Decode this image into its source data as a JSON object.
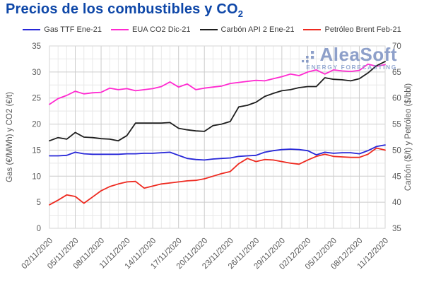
{
  "title": {
    "text": "Precios de los combustibles y CO",
    "subscript": "2"
  },
  "watermark": {
    "name": "AleaSoft",
    "tagline": "ENERGY FORECASTING"
  },
  "colors": {
    "title": "#0e47a8",
    "axis_text": "#595959",
    "grid_minor": "#e8e8e8",
    "grid_major": "#cccccc",
    "frame": "#d6d6d6",
    "watermark_text": "#7289bd",
    "watermark_tagline": "#7f98ca",
    "legend_text": "#3c3c3c"
  },
  "chart_data": {
    "type": "line",
    "title": "Precios de los combustibles y CO2",
    "grid": true,
    "legend_position": "top",
    "x_tick_labels": [
      "02/11/2020",
      "05/11/2020",
      "08/11/2020",
      "11/11/2020",
      "14/11/2020",
      "17/11/2020",
      "20/11/2020",
      "23/11/2020",
      "26/11/2020",
      "29/11/2020",
      "02/12/2020",
      "05/12/2020",
      "08/12/2020",
      "11/12/2020"
    ],
    "x_label_every_days": 3,
    "days_total": 40,
    "axes": {
      "left": {
        "label": "Gas (€/MWh) y CO2 (€/t)",
        "min": 0,
        "max": 35,
        "tick_step": 5,
        "minor_step": 2.5
      },
      "right": {
        "label": "Carbón ($/t) y Petróleo ($/bbl)",
        "min": 35,
        "max": 70,
        "tick_step": 5,
        "minor_step": 2.5
      }
    },
    "series": [
      {
        "name": "Gas TTF Ene-21",
        "axis": "left",
        "color": "#2727d8",
        "units": "€/MWh",
        "values": [
          13.9,
          13.9,
          14.0,
          14.6,
          14.3,
          14.2,
          14.2,
          14.2,
          14.2,
          14.3,
          14.3,
          14.4,
          14.4,
          14.5,
          14.6,
          14.0,
          13.4,
          13.2,
          13.1,
          13.3,
          13.4,
          13.5,
          13.8,
          13.9,
          14.0,
          14.6,
          14.9,
          15.1,
          15.2,
          15.1,
          14.9,
          14.1,
          14.6,
          14.4,
          14.5,
          14.5,
          14.3,
          14.9,
          15.7,
          16.0
        ]
      },
      {
        "name": "EUA CO2 Dic-21",
        "axis": "left",
        "color": "#ff29d0",
        "units": "€/t",
        "values": [
          23.8,
          24.9,
          25.5,
          26.3,
          25.8,
          26.0,
          26.1,
          26.9,
          26.6,
          26.8,
          26.4,
          26.6,
          26.8,
          27.2,
          28.1,
          27.1,
          27.7,
          26.6,
          26.9,
          27.1,
          27.3,
          27.8,
          28.0,
          28.2,
          28.4,
          28.3,
          28.7,
          29.1,
          29.6,
          29.3,
          30.0,
          30.4,
          29.6,
          30.4,
          30.2,
          30.1,
          30.3,
          31.5,
          31.1,
          31.4
        ]
      },
      {
        "name": "Carbón API 2 Ene-21",
        "axis": "right",
        "color": "#1d1d1d",
        "units": "$/t",
        "values": [
          51.8,
          52.4,
          52.1,
          53.4,
          52.5,
          52.4,
          52.2,
          52.1,
          51.8,
          52.8,
          55.2,
          55.2,
          55.2,
          55.2,
          55.3,
          54.2,
          53.9,
          53.7,
          53.6,
          54.7,
          55.0,
          55.5,
          58.3,
          58.6,
          59.2,
          60.3,
          60.9,
          61.4,
          61.6,
          62.0,
          62.2,
          62.2,
          63.9,
          63.6,
          63.5,
          63.3,
          63.7,
          64.8,
          66.2,
          67.0
        ]
      },
      {
        "name": "Petróleo Brent Feb-21",
        "axis": "right",
        "color": "#ee2a20",
        "units": "$/bbl",
        "values": [
          39.5,
          40.4,
          41.4,
          41.1,
          39.8,
          41.0,
          42.2,
          43.0,
          43.5,
          43.9,
          44.0,
          42.7,
          43.1,
          43.5,
          43.7,
          43.9,
          44.1,
          44.2,
          44.5,
          45.0,
          45.5,
          45.9,
          47.4,
          48.4,
          47.8,
          48.2,
          48.1,
          47.8,
          47.5,
          47.3,
          48.1,
          48.8,
          49.2,
          48.8,
          48.7,
          48.6,
          48.6,
          49.2,
          50.4,
          50.0
        ]
      }
    ]
  }
}
